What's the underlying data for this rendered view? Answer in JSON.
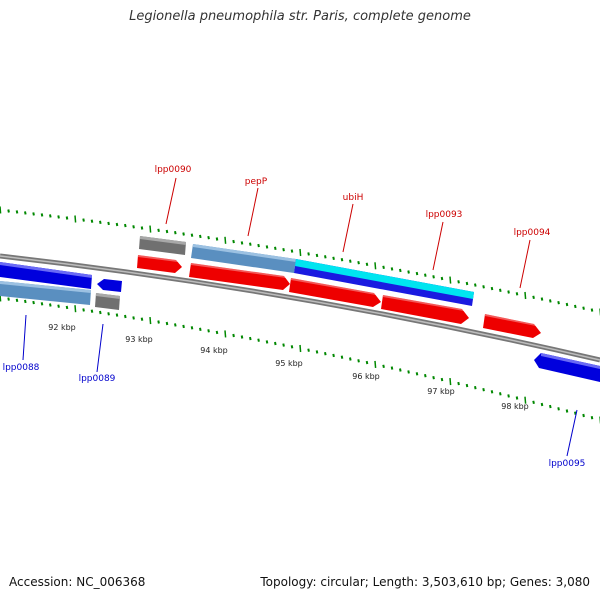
{
  "title": "Legionella pneumophila str. Paris, complete genome",
  "footer": {
    "accession": "Accession: NC_006368",
    "summary": "Topology: circular; Length: 3,503,610 bp; Genes: 3,080"
  },
  "scale_labels": [
    "92 kbp",
    "93 kbp",
    "94 kbp",
    "95 kbp",
    "96 kbp",
    "97 kbp",
    "98 kbp"
  ],
  "gene_labels_forward": [
    "lpp0090",
    "pepP",
    "ubiH",
    "lpp0093",
    "lpp0094"
  ],
  "gene_labels_reverse": [
    "lpp0088",
    "lpp0089",
    "lpp0095"
  ],
  "colors": {
    "cds": "#ee0000",
    "gene_forward": "#5a8fc0",
    "gene_reverse": "#0000dd",
    "highlight": "#00e5f0",
    "other": "#808080",
    "backbone": "#888888",
    "ticks": "#008800"
  }
}
